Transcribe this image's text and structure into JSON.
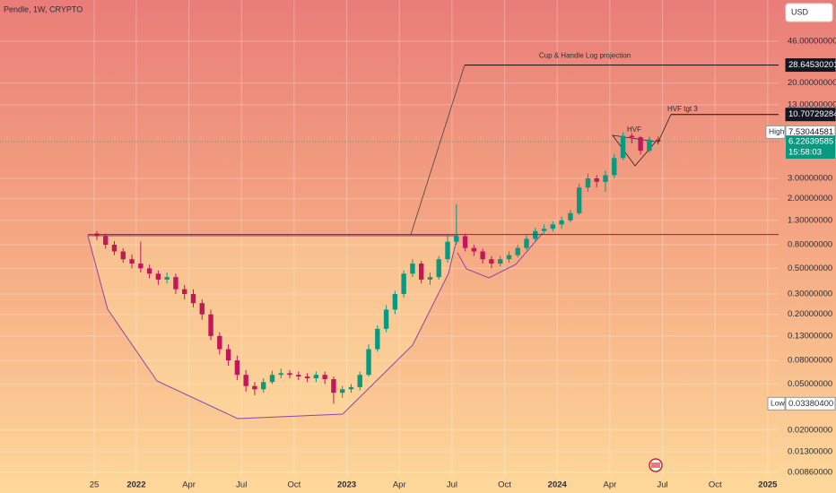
{
  "header": {
    "symbol_line": "Pendle, 1W, CRYPTO",
    "currency": "USD"
  },
  "chart_data": {
    "type": "candlestick",
    "log_scale": true,
    "grid": true,
    "up_color": "#089981",
    "down_color": "#c2185b",
    "xlim": [
      -7.77,
      36.62
    ],
    "ylim": [
      0.00787,
      104.6
    ],
    "xticks": [
      {
        "value": -2.4,
        "label": "25"
      },
      {
        "value": 0,
        "label": "2022"
      },
      {
        "value": 3,
        "label": "Apr"
      },
      {
        "value": 6,
        "label": "Jul"
      },
      {
        "value": 9,
        "label": "Oct"
      },
      {
        "value": 12,
        "label": "2023"
      },
      {
        "value": 15,
        "label": "Apr"
      },
      {
        "value": 18,
        "label": "Jul"
      },
      {
        "value": 21,
        "label": "Oct"
      },
      {
        "value": 24,
        "label": "2024"
      },
      {
        "value": 27,
        "label": "Apr"
      },
      {
        "value": 30,
        "label": "Jul"
      },
      {
        "value": 33,
        "label": "Oct"
      },
      {
        "value": 36,
        "label": "2025"
      }
    ],
    "yticks": [
      {
        "value": 46,
        "label": "46.00000000"
      },
      {
        "value": 20,
        "label": "20.00000000"
      },
      {
        "value": 13,
        "label": "13.00000000"
      },
      {
        "value": 3,
        "label": "3.00000000"
      },
      {
        "value": 2,
        "label": "2.00000000"
      },
      {
        "value": 1.3,
        "label": "1.30000000"
      },
      {
        "value": 0.8,
        "label": "0.80000000"
      },
      {
        "value": 0.5,
        "label": "0.50000000"
      },
      {
        "value": 0.3,
        "label": "0.30000000"
      },
      {
        "value": 0.2,
        "label": "0.20000000"
      },
      {
        "value": 0.13,
        "label": "0.13000000"
      },
      {
        "value": 0.08,
        "label": "0.08000000"
      },
      {
        "value": 0.05,
        "label": "0.05000000"
      },
      {
        "value": 0.02,
        "label": "0.02000000"
      },
      {
        "value": 0.013,
        "label": "0.01300000"
      },
      {
        "value": 0.0086,
        "label": "0.00860000"
      }
    ],
    "x": [
      -2.25,
      -1.75,
      -1.25,
      -0.75,
      -0.25,
      0.25,
      0.75,
      1.25,
      1.75,
      2.25,
      2.75,
      3.25,
      3.75,
      4.25,
      4.75,
      5.25,
      5.75,
      6.25,
      6.75,
      7.25,
      7.75,
      8.25,
      8.75,
      9.25,
      9.75,
      10.25,
      10.75,
      11.25,
      11.75,
      12.25,
      12.75,
      13.25,
      13.75,
      14.25,
      14.75,
      15.25,
      15.75,
      16.25,
      16.75,
      17.25,
      17.75,
      18.25,
      18.75,
      19.25,
      19.75,
      20.25,
      20.75,
      21.25,
      21.75,
      22.25,
      22.75,
      23.25,
      23.75,
      24.25,
      24.75,
      25.25,
      25.75,
      26.25,
      26.75,
      27.25,
      27.75,
      28.25,
      28.75,
      29.25,
      29.75
    ],
    "open": [
      1.0,
      0.95,
      0.8,
      0.7,
      0.6,
      0.55,
      0.5,
      0.45,
      0.4,
      0.42,
      0.33,
      0.3,
      0.25,
      0.2,
      0.13,
      0.1,
      0.08,
      0.06,
      0.048,
      0.045,
      0.052,
      0.06,
      0.062,
      0.06,
      0.058,
      0.056,
      0.06,
      0.055,
      0.042,
      0.045,
      0.047,
      0.06,
      0.1,
      0.15,
      0.22,
      0.3,
      0.45,
      0.55,
      0.4,
      0.42,
      0.6,
      0.85,
      0.95,
      0.75,
      0.7,
      0.6,
      0.55,
      0.6,
      0.65,
      0.75,
      0.9,
      1.05,
      1.1,
      1.2,
      1.3,
      1.5,
      2.5,
      3.0,
      2.8,
      3.2,
      4.5,
      7.0,
      6.8,
      5.2,
      6.5
    ],
    "high": [
      1.05,
      1.0,
      0.86,
      0.75,
      0.66,
      0.85,
      0.54,
      0.48,
      0.46,
      0.45,
      0.36,
      0.33,
      0.27,
      0.22,
      0.14,
      0.11,
      0.088,
      0.066,
      0.052,
      0.056,
      0.065,
      0.068,
      0.066,
      0.064,
      0.062,
      0.064,
      0.064,
      0.058,
      0.048,
      0.05,
      0.064,
      0.11,
      0.16,
      0.24,
      0.32,
      0.48,
      0.6,
      0.58,
      0.46,
      0.64,
      0.95,
      1.8,
      1.0,
      0.8,
      0.74,
      0.64,
      0.64,
      0.7,
      0.8,
      0.96,
      1.12,
      1.2,
      1.28,
      1.4,
      1.6,
      2.7,
      3.3,
      3.2,
      3.5,
      4.9,
      7.53044581,
      7.4,
      7.0,
      6.9,
      6.9
    ],
    "low": [
      0.88,
      0.74,
      0.65,
      0.56,
      0.5,
      0.46,
      0.41,
      0.36,
      0.37,
      0.3,
      0.27,
      0.23,
      0.18,
      0.12,
      0.09,
      0.072,
      0.054,
      0.043,
      0.04,
      0.042,
      0.05,
      0.056,
      0.056,
      0.054,
      0.052,
      0.052,
      0.05,
      0.033804,
      0.038,
      0.042,
      0.044,
      0.058,
      0.095,
      0.14,
      0.2,
      0.28,
      0.42,
      0.37,
      0.36,
      0.4,
      0.56,
      0.8,
      0.7,
      0.64,
      0.55,
      0.5,
      0.52,
      0.56,
      0.62,
      0.72,
      0.86,
      1.0,
      1.04,
      1.1,
      1.25,
      1.45,
      2.3,
      2.5,
      2.3,
      3.0,
      4.3,
      6.0,
      4.8,
      5.0,
      5.9
    ],
    "close": [
      0.95,
      0.8,
      0.7,
      0.6,
      0.55,
      0.5,
      0.45,
      0.4,
      0.42,
      0.33,
      0.3,
      0.25,
      0.2,
      0.13,
      0.1,
      0.08,
      0.06,
      0.048,
      0.045,
      0.052,
      0.06,
      0.062,
      0.06,
      0.058,
      0.056,
      0.06,
      0.055,
      0.042,
      0.045,
      0.047,
      0.06,
      0.1,
      0.15,
      0.22,
      0.3,
      0.45,
      0.55,
      0.4,
      0.42,
      0.6,
      0.85,
      0.95,
      0.75,
      0.7,
      0.6,
      0.55,
      0.6,
      0.65,
      0.75,
      0.9,
      1.05,
      1.1,
      1.2,
      1.3,
      1.5,
      2.5,
      3.0,
      2.8,
      3.2,
      4.5,
      7.0,
      6.8,
      5.2,
      6.5,
      6.23
    ],
    "neckline_price": 0.98,
    "projection": {
      "price": 28.64530201,
      "text": "Cup & Handle Log projection"
    },
    "hvf_target": {
      "price": 10.70729284,
      "text": "HVF tgt 3"
    },
    "pattern_label": "HVF",
    "high_marker": {
      "tag": "High",
      "price": 7.53044581
    },
    "low_marker": {
      "tag": "Low",
      "price": {
        "value": 0.033804,
        "label": "0.03380400"
      }
    },
    "last_price": {
      "price": 6.22639585,
      "countdown": "15:58:03"
    }
  }
}
